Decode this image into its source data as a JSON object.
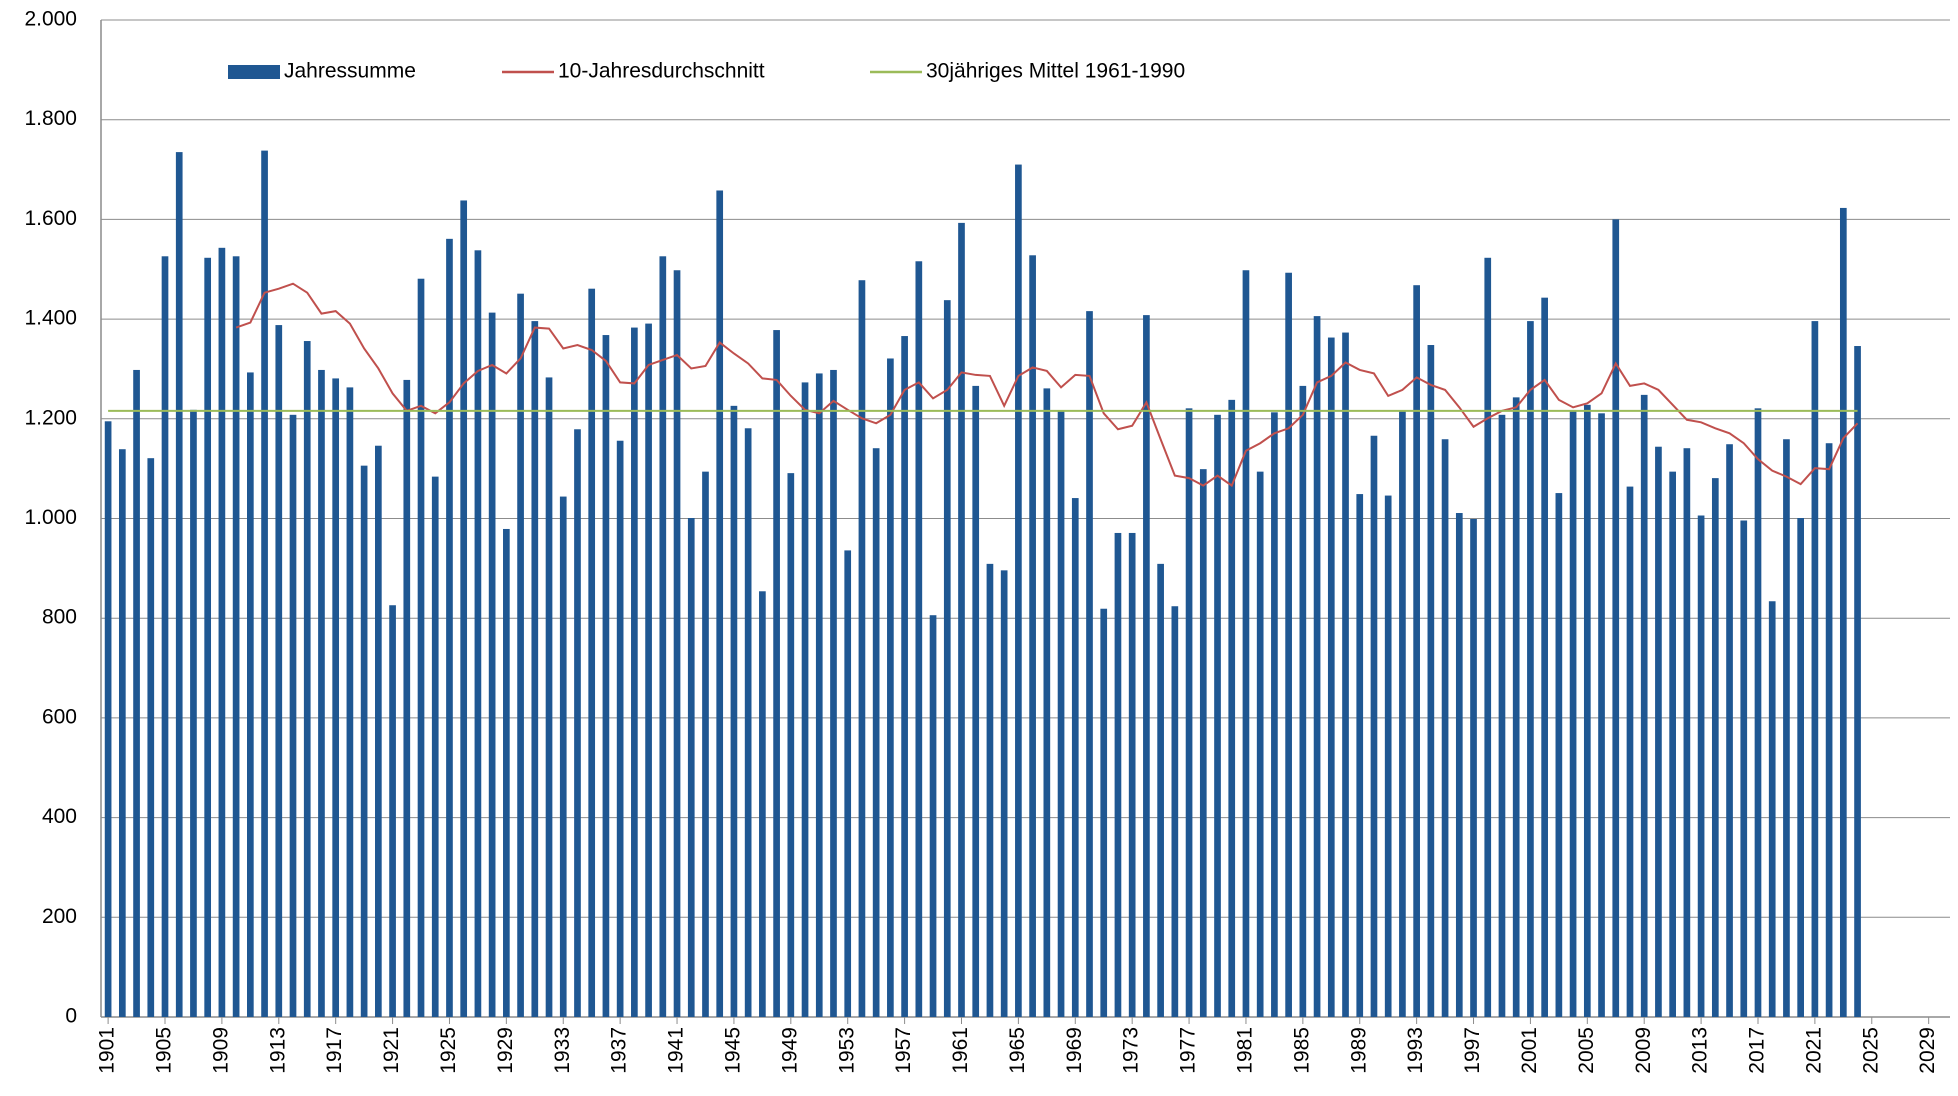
{
  "chart_data": {
    "type": "bar",
    "x": [
      1901,
      1902,
      1903,
      1904,
      1905,
      1906,
      1907,
      1908,
      1909,
      1910,
      1911,
      1912,
      1913,
      1914,
      1915,
      1916,
      1917,
      1918,
      1919,
      1920,
      1921,
      1922,
      1923,
      1924,
      1925,
      1926,
      1927,
      1928,
      1929,
      1930,
      1931,
      1932,
      1933,
      1934,
      1935,
      1936,
      1937,
      1938,
      1939,
      1940,
      1941,
      1942,
      1943,
      1944,
      1945,
      1946,
      1947,
      1948,
      1949,
      1950,
      1951,
      1952,
      1953,
      1954,
      1955,
      1956,
      1957,
      1958,
      1959,
      1960,
      1961,
      1962,
      1963,
      1964,
      1965,
      1966,
      1967,
      1968,
      1969,
      1970,
      1971,
      1972,
      1973,
      1974,
      1975,
      1976,
      1977,
      1978,
      1979,
      1980,
      1981,
      1982,
      1983,
      1984,
      1985,
      1986,
      1987,
      1988,
      1989,
      1990,
      1991,
      1992,
      1993,
      1994,
      1995,
      1996,
      1997,
      1998,
      1999,
      2000,
      2001,
      2002,
      2003,
      2004,
      2005,
      2006,
      2007,
      2008,
      2009,
      2010,
      2011,
      2012,
      2013,
      2014,
      2015,
      2016,
      2017,
      2018,
      2019,
      2020,
      2021,
      2022,
      2023,
      2024
    ],
    "series": [
      {
        "name": "Jahressumme",
        "kind": "bar",
        "color": "#1f5792",
        "values": [
          1195,
          1139,
          1298,
          1121,
          1526,
          1735,
          1218,
          1523,
          1543,
          1526,
          1293,
          1738,
          1388,
          1208,
          1356,
          1298,
          1281,
          1263,
          1106,
          1146,
          826,
          1278,
          1481,
          1084,
          1561,
          1638,
          1538,
          1413,
          979,
          1451,
          1396,
          1283,
          1044,
          1179,
          1461,
          1368,
          1156,
          1383,
          1391,
          1526,
          1498,
          1001,
          1094,
          1658,
          1226,
          1181,
          854,
          1378,
          1091,
          1273,
          1291,
          1298,
          936,
          1478,
          1141,
          1321,
          1366,
          1516,
          806,
          1438,
          1593,
          1266,
          909,
          896,
          1710,
          1528,
          1261,
          1216,
          1041,
          1416,
          819,
          971,
          971,
          1408,
          909,
          824,
          1221,
          1099,
          1208,
          1238,
          1498,
          1094,
          1213,
          1493,
          1266,
          1406,
          1363,
          1373,
          1049,
          1166,
          1046,
          1216,
          1468,
          1348,
          1159,
          1011,
          999,
          1523,
          1208,
          1243,
          1396,
          1443,
          1051,
          1216,
          1228,
          1211,
          1600,
          1064,
          1248,
          1144,
          1094,
          1141,
          1006,
          1081,
          1149,
          996,
          1221,
          834,
          1159,
          1001,
          1396,
          1151,
          1623,
          1346
        ]
      },
      {
        "name": "10-Jahresdurchschnitt",
        "kind": "line",
        "color": "#c0504d",
        "values": [
          null,
          null,
          null,
          null,
          null,
          null,
          null,
          null,
          null,
          1383,
          1393,
          1453,
          1461,
          1471,
          1453,
          1411,
          1416,
          1391,
          1341,
          1301,
          1251,
          1216,
          1226,
          1211,
          1233,
          1271,
          1296,
          1308,
          1291,
          1321,
          1383,
          1381,
          1341,
          1348,
          1338,
          1316,
          1273,
          1271,
          1308,
          1318,
          1328,
          1301,
          1306,
          1353,
          1331,
          1311,
          1281,
          1278,
          1246,
          1218,
          1211,
          1236,
          1218,
          1201,
          1191,
          1208,
          1258,
          1273,
          1241,
          1258,
          1293,
          1288,
          1286,
          1226,
          1286,
          1303,
          1296,
          1263,
          1288,
          1286,
          1211,
          1179,
          1186,
          1233,
          1159,
          1086,
          1081,
          1066,
          1086,
          1066,
          1136,
          1151,
          1171,
          1181,
          1208,
          1273,
          1286,
          1313,
          1298,
          1291,
          1246,
          1258,
          1283,
          1268,
          1258,
          1223,
          1184,
          1201,
          1216,
          1223,
          1258,
          1278,
          1238,
          1223,
          1231,
          1251,
          1311,
          1266,
          1271,
          1258,
          1228,
          1198,
          1193,
          1181,
          1171,
          1151,
          1119,
          1096,
          1084,
          1069,
          1101,
          1099,
          1161,
          1191
        ]
      },
      {
        "name": "30jähriges Mittel 1961-1990",
        "kind": "line",
        "color": "#9bbb59",
        "x": [
          1901,
          2024
        ],
        "values": [
          1216,
          1216
        ]
      }
    ],
    "xlim": [
      1900.5,
      2030.5
    ],
    "xticks": [
      1901,
      1905,
      1909,
      1913,
      1917,
      1921,
      1925,
      1929,
      1933,
      1937,
      1941,
      1945,
      1949,
      1953,
      1957,
      1961,
      1965,
      1969,
      1973,
      1977,
      1981,
      1985,
      1989,
      1993,
      1997,
      2001,
      2005,
      2009,
      2013,
      2017,
      2021,
      2025,
      2029
    ],
    "ylim": [
      0,
      2000
    ],
    "yticks": [
      0,
      200,
      400,
      600,
      800,
      {
        "value": 1000,
        "label": "1.000"
      },
      {
        "value": 1200,
        "label": "1.200"
      },
      {
        "value": 1400,
        "label": "1.400"
      },
      {
        "value": 1600,
        "label": "1.600"
      },
      {
        "value": 1800,
        "label": "1.800"
      },
      {
        "value": 2000,
        "label": "2.000"
      }
    ],
    "grid": true
  }
}
